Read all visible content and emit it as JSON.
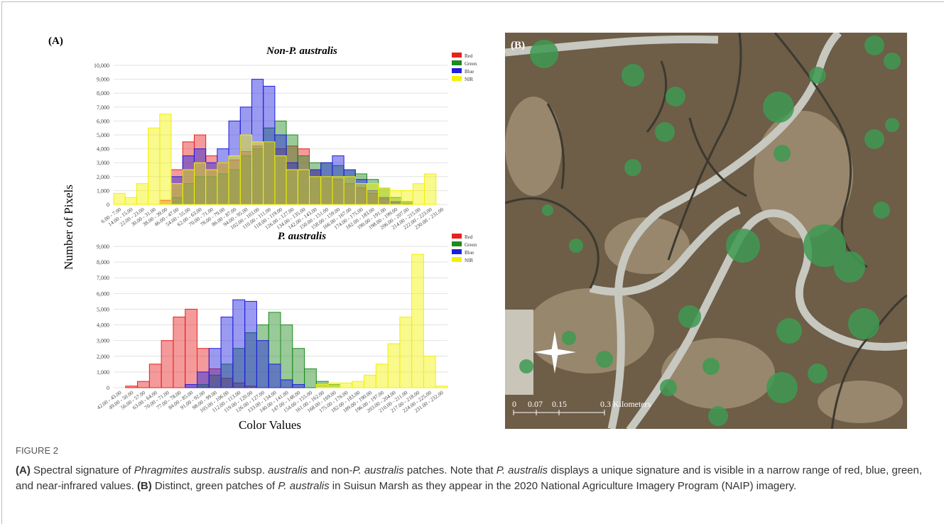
{
  "panels": {
    "a": "(A)"
  },
  "axis_labels": {
    "y": "Number of Pixels",
    "x": "Color Values"
  },
  "chart_data": [
    {
      "type": "bar",
      "title": "Non-P. australis",
      "categories": [
        "6.00 - 7.00",
        "14.00 - 15.00",
        "22.00 - 23.00",
        "30.00 - 31.00",
        "38.00 - 39.00",
        "46.00 - 47.00",
        "54.00 - 55.00",
        "62.00 - 63.00",
        "70.00 - 71.00",
        "78.00 - 79.00",
        "86.00 - 87.00",
        "94.00 - 95.00",
        "102.00 - 103.00",
        "110.00 - 111.00",
        "118.00 - 119.00",
        "126.00 - 127.00",
        "134.00 - 135.00",
        "142.00 - 143.00",
        "150.00 - 151.00",
        "158.00 - 159.00",
        "166.00 - 167.00",
        "174.00 - 175.00",
        "182.00 - 183.00",
        "190.00 - 191.00",
        "198.00 - 199.00",
        "206.00 - 207.00",
        "214.00 - 215.00",
        "222.00 - 223.00",
        "230.00 - 231.00"
      ],
      "series": [
        {
          "name": "Red",
          "color": "#e8201f",
          "values": [
            0,
            0,
            0,
            0,
            300,
            2500,
            4500,
            5000,
            3500,
            3000,
            3200,
            3800,
            4200,
            4500,
            4000,
            4200,
            4000,
            2500,
            2000,
            1800,
            1500,
            1200,
            800,
            400,
            200,
            50,
            0,
            0,
            0
          ]
        },
        {
          "name": "Green",
          "color": "#1e8a1e",
          "values": [
            0,
            0,
            0,
            0,
            0,
            500,
            1500,
            2000,
            2000,
            2200,
            2500,
            3500,
            4000,
            5500,
            6000,
            5000,
            3500,
            3000,
            3000,
            2800,
            2500,
            2200,
            1800,
            1200,
            500,
            200,
            0,
            0,
            0
          ]
        },
        {
          "name": "Blue",
          "color": "#1f1fe0",
          "values": [
            0,
            0,
            0,
            0,
            0,
            2000,
            3500,
            4000,
            3000,
            4000,
            6000,
            7000,
            9000,
            8500,
            5000,
            3000,
            2500,
            2500,
            3000,
            3500,
            2500,
            1800,
            1000,
            500,
            200,
            0,
            0,
            0,
            0
          ]
        },
        {
          "name": "NIR",
          "color": "#f2f200",
          "values": [
            800,
            500,
            1500,
            5500,
            6500,
            1500,
            2500,
            3000,
            2500,
            3000,
            3500,
            5000,
            4500,
            4500,
            3500,
            2500,
            2500,
            2000,
            2000,
            2000,
            2000,
            1500,
            1500,
            1200,
            1000,
            1000,
            1500,
            2200,
            0
          ]
        }
      ],
      "ylim": [
        0,
        10000
      ],
      "yticks": [
        0,
        {
          "value": 1000,
          "label": "1,000"
        },
        {
          "value": 2000,
          "label": "2,000"
        },
        {
          "value": 3000,
          "label": "3,000"
        },
        {
          "value": 4000,
          "label": "4,000"
        },
        {
          "value": 5000,
          "label": "5,000"
        },
        {
          "value": 6000,
          "label": "6,000"
        },
        {
          "value": 7000,
          "label": "7,000"
        },
        {
          "value": 8000,
          "label": "8,000"
        },
        {
          "value": 9000,
          "label": "9,000"
        },
        {
          "value": 10000,
          "label": "10,000"
        }
      ],
      "grid": true,
      "legend": "right"
    },
    {
      "type": "bar",
      "title": "P. australis",
      "categories": [
        "42.00 - 43.00",
        "49.00 - 50.00",
        "56.00 - 57.00",
        "63.00 - 64.00",
        "70.00 - 71.00",
        "77.00 - 78.00",
        "84.00 - 85.00",
        "91.00 - 92.00",
        "98.00 - 99.00",
        "105.00 - 106.00",
        "112.00 - 113.00",
        "119.00 - 120.00",
        "126.00 - 127.00",
        "133.00 - 134.00",
        "140.00 - 141.00",
        "147.00 - 148.00",
        "154.00 - 155.00",
        "161.00 - 162.00",
        "168.00 - 169.00",
        "175.00 - 176.00",
        "182.00 - 183.00",
        "189.00 - 190.00",
        "196.00 - 197.00",
        "203.00 - 204.00",
        "210.00 - 211.00",
        "217.00 - 218.00",
        "224.00 - 225.00",
        "231.00 - 232.00"
      ],
      "series": [
        {
          "name": "Red",
          "color": "#e8201f",
          "values": [
            0,
            100,
            400,
            1500,
            3000,
            4500,
            5000,
            2500,
            1200,
            600,
            300,
            100,
            0,
            0,
            0,
            0,
            0,
            0,
            0,
            0,
            0,
            0,
            0,
            0,
            0,
            0,
            0,
            0
          ]
        },
        {
          "name": "Green",
          "color": "#1e8a1e",
          "values": [
            0,
            0,
            0,
            0,
            0,
            0,
            0,
            200,
            800,
            1500,
            2500,
            3500,
            4000,
            4800,
            4000,
            2500,
            1200,
            400,
            200,
            0,
            0,
            0,
            0,
            0,
            0,
            0,
            0,
            0
          ]
        },
        {
          "name": "Blue",
          "color": "#1f1fe0",
          "values": [
            0,
            0,
            0,
            0,
            0,
            0,
            200,
            1000,
            2500,
            4500,
            5600,
            5500,
            3000,
            1500,
            500,
            200,
            0,
            0,
            0,
            0,
            0,
            0,
            0,
            0,
            0,
            0,
            0,
            0
          ]
        },
        {
          "name": "NIR",
          "color": "#f2f200",
          "values": [
            0,
            0,
            0,
            0,
            0,
            0,
            0,
            0,
            0,
            0,
            0,
            0,
            0,
            0,
            0,
            0,
            0,
            200,
            300,
            300,
            400,
            800,
            1500,
            2800,
            4500,
            8500,
            2000,
            100
          ]
        }
      ],
      "ylim": [
        0,
        9000
      ],
      "yticks": [
        0,
        {
          "value": 1000,
          "label": "1,000"
        },
        {
          "value": 2000,
          "label": "2,000"
        },
        {
          "value": 3000,
          "label": "3,000"
        },
        {
          "value": 4000,
          "label": "4,000"
        },
        {
          "value": 5000,
          "label": "5,000"
        },
        {
          "value": 6000,
          "label": "6,000"
        },
        {
          "value": 7000,
          "label": "7,000"
        },
        {
          "value": 8000,
          "label": "8,000"
        },
        {
          "value": 9000,
          "label": "9,000"
        }
      ],
      "grid": true,
      "legend": "right"
    }
  ],
  "image": {
    "panel_label": "(B)",
    "scale_labels": [
      "0",
      "0.07",
      "0.15",
      "0.3 Kilometers"
    ]
  },
  "caption": {
    "figure_label": "FIGURE 2",
    "parts": [
      "(A)",
      " Spectral signature of ",
      "Phragmites australis",
      " subsp. ",
      "australis",
      " and non-",
      "P. australis",
      " patches. Note that ",
      "P. australis",
      " displays a unique signature and is visible in a narrow range of red, blue, green, and near-infrared values. ",
      "(B)",
      " Distinct, green patches of ",
      "P. australis",
      " in Suisun Marsh as they appear in the 2020 National Agriculture Imagery Program (NAIP) imagery."
    ]
  }
}
